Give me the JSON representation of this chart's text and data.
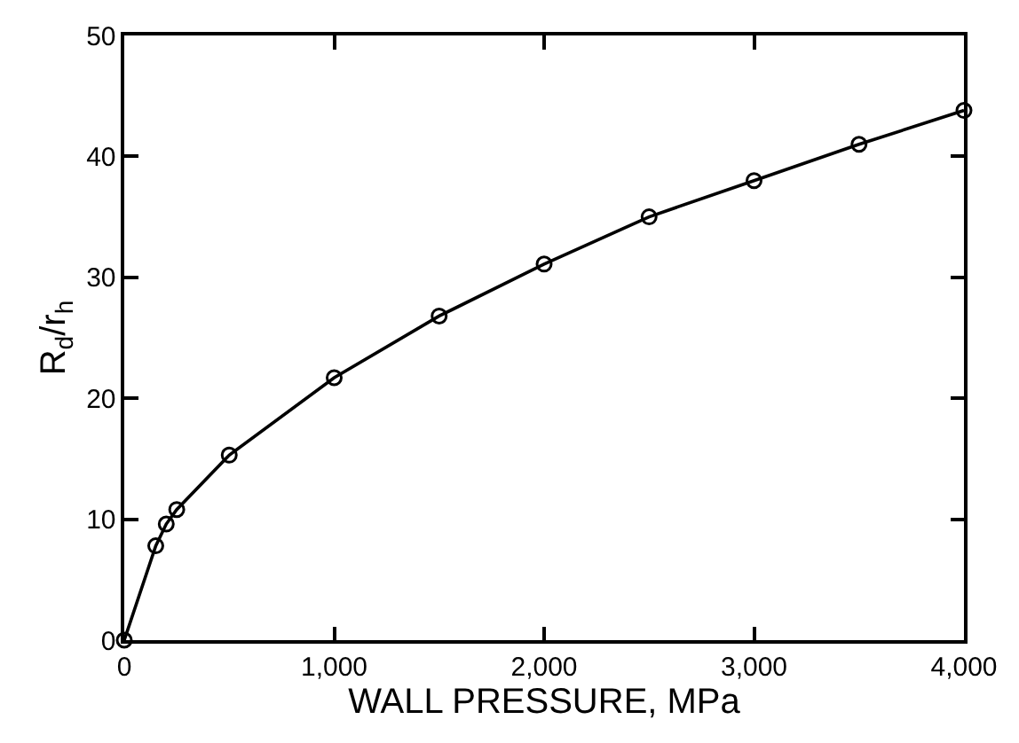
{
  "chart_data": {
    "type": "line",
    "xlabel": "WALL PRESSURE, MPa",
    "ylabel": "R$_{d}$/r$_{h}$",
    "x": [
      0,
      150,
      200,
      250,
      500,
      1000,
      1500,
      2000,
      2500,
      3000,
      3500,
      4000
    ],
    "series": [
      {
        "color": "#000000",
        "values": [
          0,
          7.8,
          9.6,
          10.8,
          15.3,
          21.7,
          26.8,
          31.1,
          35,
          38,
          41,
          43.8
        ]
      }
    ],
    "xlim": [
      0,
      4000
    ],
    "xticks": [
      0,
      {
        "value": 1000,
        "label": "1,000"
      },
      {
        "value": 2000,
        "label": "2,000"
      },
      {
        "value": 3000,
        "label": "3,000"
      },
      {
        "value": 4000,
        "label": "4,000"
      }
    ],
    "ylim": [
      0,
      50
    ],
    "yticks": [
      0,
      10,
      20,
      30,
      40,
      50
    ],
    "marker": "circle",
    "line_style": "solid"
  }
}
